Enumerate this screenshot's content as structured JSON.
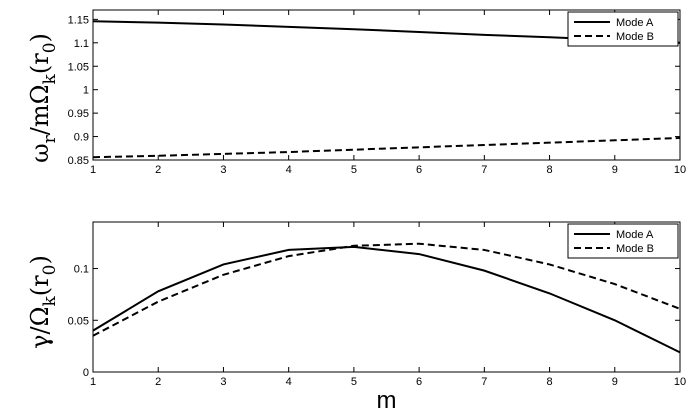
{
  "chart_data": [
    {
      "type": "line",
      "ylabel": "ω_r/mΩ_k(r_0)",
      "xlabel": "",
      "x": [
        1,
        2,
        3,
        4,
        5,
        6,
        7,
        8,
        9,
        10
      ],
      "xlim": [
        1,
        10
      ],
      "ylim": [
        0.85,
        1.17
      ],
      "xticks": [
        "1",
        "2",
        "3",
        "4",
        "5",
        "6",
        "7",
        "8",
        "9",
        "10"
      ],
      "yticks": [
        0.85,
        0.9,
        0.95,
        1,
        1.05,
        1.1,
        1.15
      ],
      "ytick_labels": [
        "0.85",
        "0.9",
        "0.95",
        "1",
        "1.05",
        "1.1",
        "1.15"
      ],
      "grid": false,
      "legend_position": "top-right",
      "series": [
        {
          "name": "Mode A",
          "style": "solid",
          "values": [
            1.146,
            1.143,
            1.139,
            1.134,
            1.129,
            1.123,
            1.117,
            1.112,
            1.106,
            1.1
          ]
        },
        {
          "name": "Mode B",
          "style": "dashed",
          "values": [
            0.856,
            0.859,
            0.863,
            0.867,
            0.872,
            0.877,
            0.882,
            0.887,
            0.892,
            0.897
          ]
        }
      ]
    },
    {
      "type": "line",
      "ylabel": "γ/Ω_k(r_0)",
      "xlabel": "m",
      "x": [
        1,
        2,
        3,
        4,
        5,
        6,
        7,
        8,
        9,
        10
      ],
      "xlim": [
        1,
        10
      ],
      "ylim": [
        0,
        0.145
      ],
      "xticks": [
        "1",
        "2",
        "3",
        "4",
        "5",
        "6",
        "7",
        "8",
        "9",
        "10"
      ],
      "yticks": [
        0,
        0.05,
        0.1
      ],
      "ytick_labels": [
        "0",
        "0.05",
        "0.1"
      ],
      "grid": false,
      "legend_position": "top-right",
      "series": [
        {
          "name": "Mode A",
          "style": "solid",
          "values": [
            0.04,
            0.078,
            0.104,
            0.118,
            0.121,
            0.114,
            0.098,
            0.076,
            0.05,
            0.019
          ]
        },
        {
          "name": "Mode B",
          "style": "dashed",
          "values": [
            0.035,
            0.068,
            0.094,
            0.112,
            0.122,
            0.124,
            0.118,
            0.104,
            0.085,
            0.061
          ]
        }
      ]
    }
  ]
}
